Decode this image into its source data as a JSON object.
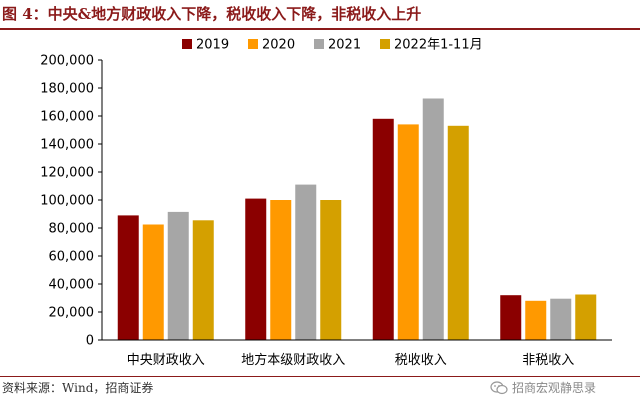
{
  "title": "图 4：中央&地方财政收入下降，税收收入下降，非税收入上升",
  "source": "资料来源：Wind，招商证券",
  "watermark": "招商宏观静思录",
  "chart_data": {
    "type": "bar",
    "categories": [
      "中央财政收入",
      "地方本级财政收入",
      "税收收入",
      "非税收入"
    ],
    "series": [
      {
        "name": "2019",
        "color": "#8b0000",
        "values": [
          89000,
          101000,
          158000,
          32000
        ]
      },
      {
        "name": "2020",
        "color": "#ff9900",
        "values": [
          82500,
          100000,
          154000,
          28000
        ]
      },
      {
        "name": "2021",
        "color": "#a6a6a6",
        "values": [
          91500,
          111000,
          172500,
          29500
        ]
      },
      {
        "name": "2022年1-11月",
        "color": "#d4a000",
        "values": [
          85500,
          100000,
          153000,
          32500
        ]
      }
    ],
    "ylim": [
      0,
      200000
    ],
    "yticks": [
      "0",
      "20,000",
      "40,000",
      "60,000",
      "80,000",
      "100,000",
      "120,000",
      "140,000",
      "160,000",
      "180,000",
      "200,000"
    ],
    "legend_position": "top",
    "grid": false
  }
}
